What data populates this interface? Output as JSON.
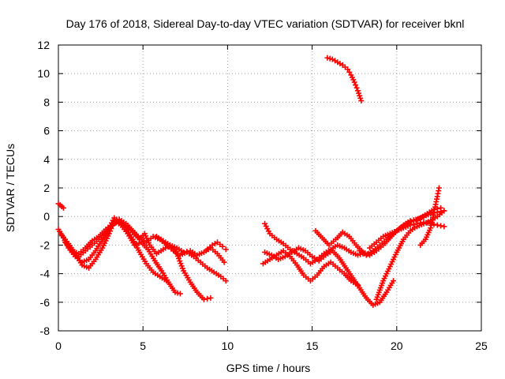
{
  "chart_data": {
    "type": "scatter",
    "title": "Day 176 of 2018, Sidereal Day-to-day VTEC variation (SDTVAR) for receiver bknl",
    "xlabel": "GPS time / hours",
    "ylabel": "SDTVAR / TECUs",
    "xlim": [
      0,
      25
    ],
    "ylim": [
      -8,
      12
    ],
    "xticks": [
      "0",
      "5",
      "10",
      "15",
      "20",
      "25"
    ],
    "xtick_values": [
      0,
      5,
      10,
      15,
      20,
      25
    ],
    "yticks": [
      "-8",
      "-6",
      "-4",
      "-2",
      "0",
      "2",
      "4",
      "6",
      "8",
      "10",
      "12"
    ],
    "ytick_values": [
      -8,
      -6,
      -4,
      -2,
      0,
      2,
      4,
      6,
      8,
      10,
      12
    ],
    "grid": true,
    "marker": "+",
    "color": "#ff0000",
    "series": [
      {
        "name": "s1",
        "x": [
          0.0,
          0.1,
          0.2,
          0.3
        ],
        "y": [
          0.9,
          0.8,
          0.7,
          0.6
        ]
      },
      {
        "name": "s2",
        "x": [
          0.0,
          0.3,
          0.6,
          1.0,
          1.4,
          1.8,
          2.2,
          2.6,
          3.0,
          3.3,
          3.6,
          4.0,
          4.4,
          4.8,
          5.2,
          5.6,
          6.0,
          6.4
        ],
        "y": [
          -0.9,
          -1.5,
          -2.2,
          -2.8,
          -3.2,
          -3.0,
          -2.4,
          -1.6,
          -0.8,
          -0.1,
          -0.3,
          -0.8,
          -1.6,
          -2.5,
          -3.3,
          -3.9,
          -4.2,
          -4.5
        ]
      },
      {
        "name": "s3",
        "x": [
          0.2,
          0.6,
          1.0,
          1.4,
          1.8,
          2.2,
          2.6,
          3.0,
          3.3,
          3.7,
          4.1,
          4.5,
          4.9,
          5.3,
          5.7,
          6.1,
          6.5,
          6.9,
          7.2
        ],
        "y": [
          -1.3,
          -1.9,
          -2.6,
          -3.4,
          -3.6,
          -3.0,
          -2.2,
          -1.2,
          -0.3,
          -0.6,
          -1.2,
          -2.0,
          -1.8,
          -2.3,
          -3.1,
          -3.8,
          -4.6,
          -5.3,
          -5.4
        ]
      },
      {
        "name": "s4",
        "x": [
          0.4,
          0.8,
          1.2,
          1.6,
          2.0,
          2.4,
          2.8,
          3.2,
          3.6,
          4.0,
          4.4,
          4.8,
          5.1,
          5.4,
          5.8,
          6.2,
          6.6,
          7.0,
          7.4,
          7.8,
          8.2,
          8.6,
          9.0
        ],
        "y": [
          -1.8,
          -2.4,
          -2.6,
          -2.2,
          -1.7,
          -1.4,
          -0.9,
          -0.5,
          -0.4,
          -0.7,
          -1.1,
          -1.6,
          -1.2,
          -2.0,
          -2.6,
          -2.3,
          -2.0,
          -2.6,
          -3.8,
          -4.6,
          -5.3,
          -5.8,
          -5.7
        ]
      },
      {
        "name": "s5",
        "x": [
          0.8,
          1.2,
          1.6,
          2.0,
          2.4,
          2.8,
          3.2,
          3.6,
          4.0,
          4.4,
          4.8,
          5.2,
          5.6,
          6.0,
          6.4,
          6.8,
          7.2,
          7.6,
          8.0,
          8.4,
          8.8,
          9.2,
          9.6,
          9.9
        ],
        "y": [
          -2.5,
          -2.8,
          -2.4,
          -2.0,
          -1.6,
          -1.2,
          -0.6,
          -0.2,
          -0.5,
          -1.0,
          -1.5,
          -1.8,
          -1.4,
          -1.6,
          -2.0,
          -2.4,
          -2.7,
          -2.5,
          -2.8,
          -3.2,
          -3.6,
          -3.9,
          -4.2,
          -4.5
        ]
      },
      {
        "name": "s6",
        "x": [
          5.8,
          6.2,
          6.6,
          7.0,
          7.4,
          7.8,
          8.2,
          8.6,
          9.0,
          9.4,
          9.8
        ],
        "y": [
          -1.4,
          -1.7,
          -2.0,
          -2.2,
          -2.5,
          -2.4,
          -2.7,
          -2.5,
          -2.2,
          -2.6,
          -3.2
        ]
      },
      {
        "name": "s7",
        "x": [
          8.8,
          9.1,
          9.4,
          9.7,
          9.9
        ],
        "y": [
          -2.3,
          -2.0,
          -1.8,
          -2.1,
          -2.3
        ]
      },
      {
        "name": "s8",
        "x": [
          12.2,
          12.5,
          12.9,
          13.3,
          13.7,
          14.1,
          14.5,
          14.9,
          15.3,
          15.7,
          16.1,
          16.5,
          16.9,
          17.3,
          17.7,
          18.0
        ],
        "y": [
          -0.5,
          -1.2,
          -1.6,
          -1.9,
          -2.3,
          -2.6,
          -2.9,
          -3.3,
          -3.0,
          -2.6,
          -2.3,
          -2.0,
          -2.2,
          -2.5,
          -2.7,
          -2.6
        ]
      },
      {
        "name": "s9",
        "x": [
          12.1,
          12.5,
          12.9,
          13.3,
          13.7,
          14.1,
          14.5,
          14.9,
          15.3,
          15.7,
          16.1,
          16.5,
          16.9,
          17.3,
          17.7
        ],
        "y": [
          -3.3,
          -3.0,
          -2.7,
          -2.4,
          -2.8,
          -3.4,
          -4.1,
          -4.5,
          -4.1,
          -3.5,
          -3.2,
          -3.6,
          -4.0,
          -4.5,
          -4.8
        ]
      },
      {
        "name": "s10",
        "x": [
          12.2,
          12.6,
          13.0,
          13.4,
          13.8,
          14.2,
          14.6,
          15.0,
          15.4,
          15.8,
          16.2,
          16.6,
          17.0,
          17.4,
          17.8,
          18.2,
          18.6,
          19.0,
          19.4,
          19.8
        ],
        "y": [
          -2.5,
          -2.7,
          -3.0,
          -2.8,
          -2.5,
          -2.2,
          -2.4,
          -2.8,
          -3.1,
          -2.7,
          -2.4,
          -2.9,
          -3.6,
          -4.3,
          -5.0,
          -5.7,
          -6.2,
          -6.0,
          -5.3,
          -4.5
        ]
      },
      {
        "name": "s11",
        "x": [
          15.2,
          15.6,
          16.0,
          16.4,
          16.8,
          17.2,
          17.6,
          18.0,
          18.4,
          18.8,
          19.2,
          19.6,
          20.0,
          20.4,
          20.8,
          21.2,
          21.6,
          22.0,
          22.4,
          22.8
        ],
        "y": [
          -1.0,
          -1.5,
          -2.0,
          -1.6,
          -1.1,
          -1.4,
          -2.0,
          -2.5,
          -2.7,
          -2.4,
          -2.0,
          -1.5,
          -1.0,
          -0.6,
          -0.3,
          -0.2,
          0.0,
          0.2,
          0.3,
          0.4
        ]
      },
      {
        "name": "s12",
        "x": [
          17.8,
          18.2,
          18.6,
          19.0,
          19.4,
          19.8,
          20.2,
          20.6,
          21.0,
          21.4,
          21.8,
          22.2,
          22.6
        ],
        "y": [
          -2.4,
          -2.7,
          -2.4,
          -2.0,
          -1.6,
          -1.2,
          -0.8,
          -0.5,
          -0.3,
          -0.1,
          0.2,
          0.5,
          0.6
        ]
      },
      {
        "name": "s13",
        "x": [
          18.4,
          18.8,
          19.2,
          19.6,
          20.0,
          20.4,
          20.8,
          21.2,
          21.6,
          22.0,
          22.4,
          22.8
        ],
        "y": [
          -2.2,
          -1.8,
          -1.4,
          -1.2,
          -1.0,
          -0.8,
          -0.6,
          -0.5,
          -0.4,
          -0.5,
          -0.6,
          -0.7
        ]
      },
      {
        "name": "s14",
        "x": [
          18.8,
          19.2,
          19.6,
          20.0,
          20.4,
          20.8,
          21.2,
          21.6,
          22.0,
          22.4,
          22.8
        ],
        "y": [
          -5.8,
          -4.5,
          -3.5,
          -2.5,
          -1.6,
          -1.0,
          -0.7,
          -0.5,
          -0.3,
          0.0,
          0.4
        ]
      },
      {
        "name": "s15",
        "x": [
          21.4,
          21.7,
          22.0,
          22.2,
          22.4,
          22.5
        ],
        "y": [
          -2.0,
          -1.6,
          -0.8,
          0.3,
          1.4,
          2.0
        ]
      },
      {
        "name": "s16",
        "x": [
          15.9,
          16.2,
          16.5,
          16.8,
          17.1,
          17.3,
          17.5,
          17.7,
          17.9
        ],
        "y": [
          11.1,
          11.0,
          10.8,
          10.6,
          10.3,
          9.9,
          9.4,
          8.8,
          8.1
        ]
      }
    ]
  }
}
